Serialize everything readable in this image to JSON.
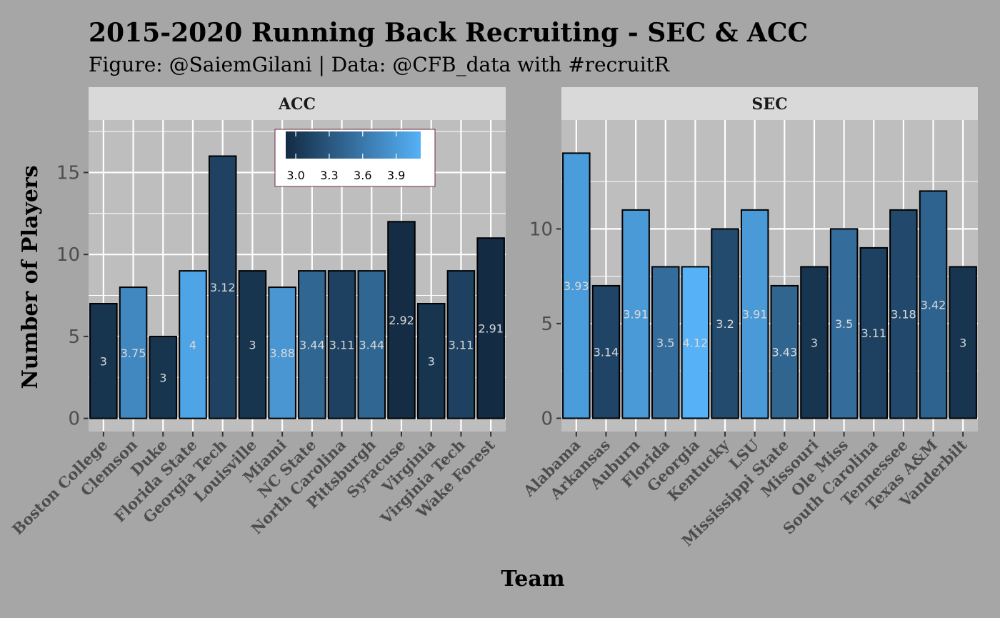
{
  "title": "2015-2020 Running Back Recruiting - SEC & ACC",
  "subtitle": "Figure: @SaiemGilani | Data: @CFB_data with #recruitR",
  "chart_data": {
    "type": "bar",
    "xlabel": "Team",
    "ylabel": "Number of Players",
    "grid": true,
    "legend": {
      "position": "inside-top",
      "colors": [
        "#132b43",
        "#56b1f7"
      ],
      "range": [
        2.91,
        4.12
      ],
      "ticks": [
        "3.0",
        "3.3",
        "3.6",
        "3.9"
      ],
      "tick_values": [
        3.0,
        3.3,
        3.6,
        3.9
      ]
    },
    "panels": [
      {
        "name": "ACC",
        "ylim": [
          -0.8,
          18.2
        ],
        "yticks": [
          0,
          5,
          10,
          15
        ],
        "categories": [
          "Boston College",
          "Clemson",
          "Duke",
          "Florida State",
          "Georgia Tech",
          "Louisville",
          "Miami",
          "NC State",
          "North Carolina",
          "Pittsburgh",
          "Syracuse",
          "Virginia",
          "Virginia Tech",
          "Wake Forest"
        ],
        "values": [
          7,
          8,
          5,
          9,
          16,
          9,
          8,
          9,
          9,
          9,
          12,
          7,
          9,
          11
        ],
        "avg_rating": [
          3,
          3.75,
          3,
          4,
          3.12,
          3,
          3.88,
          3.44,
          3.11,
          3.44,
          2.92,
          3,
          3.11,
          2.91
        ],
        "labels": [
          "3",
          "3.75",
          "3",
          "4",
          "3.12",
          "3",
          "3.88",
          "3.44",
          "3.11",
          "3.44",
          "2.92",
          "3",
          "3.11",
          "2.91"
        ]
      },
      {
        "name": "SEC",
        "ylim": [
          -0.7,
          15.75
        ],
        "yticks": [
          0,
          5,
          10
        ],
        "categories": [
          "Alabama",
          "Arkansas",
          "Auburn",
          "Florida",
          "Georgia",
          "Kentucky",
          "LSU",
          "Mississippi State",
          "Missouri",
          "Ole Miss",
          "South Carolina",
          "Tennessee",
          "Texas A&M",
          "Vanderbilt"
        ],
        "values": [
          14,
          7,
          11,
          8,
          8,
          10,
          11,
          7,
          8,
          10,
          9,
          11,
          12,
          8
        ],
        "avg_rating": [
          3.93,
          3.14,
          3.91,
          3.5,
          4.12,
          3.2,
          3.91,
          3.43,
          3,
          3.5,
          3.11,
          3.18,
          3.42,
          3
        ],
        "labels": [
          "3.93",
          "3.14",
          "3.91",
          "3.5",
          "4.12",
          "3.2",
          "3.91",
          "3.43",
          "3",
          "3.5",
          "3.11",
          "3.18",
          "3.42",
          "3"
        ]
      }
    ]
  }
}
